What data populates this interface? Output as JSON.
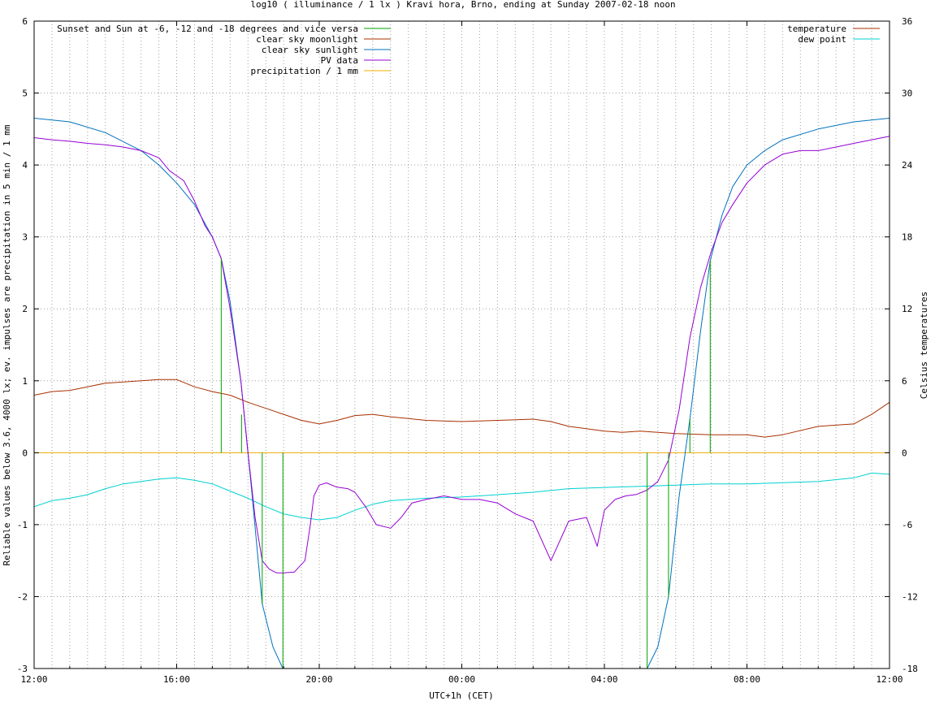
{
  "chart_data": {
    "type": "line",
    "title": "log10 ( illuminance / 1 lx ) Kravi hora, Brno, ending at Sunday 2007-02-18 noon",
    "xlabel": "UTC+1h (CET)",
    "ylabel": "Reliable values below 3.6, 4000 lx; ev. impulses are precipitation in 5 min / 1 mm",
    "y2label": "Celsius temperatures",
    "x_unit": "hours since 2007-02-17 12:00 CET",
    "xlim": [
      0,
      24
    ],
    "ylim": [
      -3,
      6
    ],
    "y2lim": [
      -18,
      36
    ],
    "x_ticks": [
      {
        "x": 0,
        "label": "12:00"
      },
      {
        "x": 4,
        "label": "16:00"
      },
      {
        "x": 8,
        "label": "20:00"
      },
      {
        "x": 12,
        "label": "00:00"
      },
      {
        "x": 16,
        "label": "04:00"
      },
      {
        "x": 20,
        "label": "08:00"
      },
      {
        "x": 24,
        "label": "12:00"
      }
    ],
    "y_ticks": [
      {
        "v": -3,
        "label": "-3"
      },
      {
        "v": -2,
        "label": "-2"
      },
      {
        "v": -1,
        "label": "-1"
      },
      {
        "v": 0,
        "label": "0"
      },
      {
        "v": 1,
        "label": "1"
      },
      {
        "v": 2,
        "label": "2"
      },
      {
        "v": 3,
        "label": "3"
      },
      {
        "v": 4,
        "label": "4"
      },
      {
        "v": 5,
        "label": "5"
      },
      {
        "v": 6,
        "label": "6"
      }
    ],
    "y2_ticks": [
      {
        "v": -18,
        "label": "-18"
      },
      {
        "v": -12,
        "label": "-12"
      },
      {
        "v": -6,
        "label": "-6"
      },
      {
        "v": 0,
        "label": "0"
      },
      {
        "v": 6,
        "label": "6"
      },
      {
        "v": 12,
        "label": "12"
      },
      {
        "v": 18,
        "label": "18"
      },
      {
        "v": 24,
        "label": "24"
      },
      {
        "v": 30,
        "label": "30"
      },
      {
        "v": 36,
        "label": "36"
      }
    ],
    "grid": true,
    "legend_left": [
      {
        "name": "Sunset and Sun at -6, -12 and -18 degrees and vice versa",
        "color": "#00a000"
      },
      {
        "name": "clear sky moonlight",
        "color": "#a83000"
      },
      {
        "name": "clear sky sunlight",
        "color": "#0072bd"
      },
      {
        "name": "PV data",
        "color": "#9400d3"
      },
      {
        "name": "precipitation / 1 mm",
        "color": "#f0b000"
      }
    ],
    "legend_right": [
      {
        "name": "temperature",
        "color": "#a83000"
      },
      {
        "name": "dew point",
        "color": "#00d0d0"
      }
    ],
    "sun_markers": [
      {
        "x": 5.25,
        "y": 2.7
      },
      {
        "x": 5.82,
        "y": 0.53
      },
      {
        "x": 6.4,
        "y": -2.1
      },
      {
        "x": 6.98,
        "y": -3.0
      },
      {
        "x": 17.2,
        "y": -3.0
      },
      {
        "x": 17.8,
        "y": -2.0
      },
      {
        "x": 18.4,
        "y": 0.47
      },
      {
        "x": 18.97,
        "y": 2.67
      }
    ],
    "precipitation": [
      0,
      0
    ],
    "series": [
      {
        "name": "clear sky sunlight",
        "axis": "y",
        "color": "#0072bd",
        "x": [
          0,
          1,
          2,
          3,
          3.5,
          4,
          4.5,
          5,
          5.25,
          5.5,
          5.8,
          6.1,
          6.4,
          6.7,
          6.98,
          17.2,
          17.5,
          17.8,
          18.1,
          18.4,
          18.7,
          18.97,
          19.3,
          19.6,
          20,
          20.5,
          21,
          22,
          23,
          24
        ],
        "y": [
          4.65,
          4.6,
          4.45,
          4.2,
          4.0,
          3.75,
          3.45,
          3.0,
          2.7,
          2.1,
          1.0,
          -0.5,
          -2.1,
          -2.7,
          -3.0,
          -3.0,
          -2.7,
          -2.0,
          -0.6,
          0.47,
          1.7,
          2.67,
          3.3,
          3.7,
          4.0,
          4.2,
          4.35,
          4.5,
          4.6,
          4.65
        ]
      },
      {
        "name": "PV data",
        "axis": "y",
        "color": "#9400d3",
        "x": [
          0,
          0.5,
          1,
          1.5,
          2,
          2.5,
          3,
          3.5,
          3.8,
          4.0,
          4.2,
          4.5,
          4.8,
          5.0,
          5.25,
          5.5,
          5.8,
          6.0,
          6.2,
          6.4,
          6.6,
          6.8,
          7.0,
          7.3,
          7.6,
          7.75,
          7.85,
          8.0,
          8.2,
          8.5,
          8.8,
          9.0,
          9.3,
          9.6,
          10.0,
          10.3,
          10.6,
          11.0,
          11.5,
          12.0,
          12.5,
          13.0,
          13.5,
          14.0,
          14.5,
          15.0,
          15.5,
          15.8,
          16.0,
          16.3,
          16.6,
          16.9,
          17.2,
          17.5,
          17.8,
          18.1,
          18.4,
          18.7,
          19.0,
          19.3,
          19.6,
          20.0,
          20.5,
          21.0,
          21.5,
          22.0,
          22.5,
          23.0,
          23.5,
          24.0
        ],
        "y": [
          4.38,
          4.35,
          4.33,
          4.3,
          4.28,
          4.25,
          4.2,
          4.1,
          3.92,
          3.85,
          3.78,
          3.5,
          3.15,
          3.0,
          2.7,
          2.0,
          1.0,
          0.0,
          -0.9,
          -1.5,
          -1.62,
          -1.67,
          -1.67,
          -1.66,
          -1.5,
          -1.0,
          -0.6,
          -0.45,
          -0.42,
          -0.48,
          -0.5,
          -0.55,
          -0.75,
          -1.0,
          -1.05,
          -0.9,
          -0.7,
          -0.65,
          -0.6,
          -0.65,
          -0.65,
          -0.7,
          -0.85,
          -0.95,
          -1.5,
          -0.95,
          -0.9,
          -1.3,
          -0.8,
          -0.65,
          -0.6,
          -0.58,
          -0.52,
          -0.4,
          -0.1,
          0.6,
          1.6,
          2.3,
          2.8,
          3.2,
          3.45,
          3.75,
          4.0,
          4.15,
          4.2,
          4.2,
          4.25,
          4.3,
          4.35,
          4.4
        ]
      },
      {
        "name": "temperature",
        "axis": "y2",
        "color": "#a83000",
        "x": [
          0,
          0.5,
          1,
          1.5,
          2,
          2.5,
          3,
          3.5,
          4,
          4.5,
          5,
          5.5,
          6,
          6.5,
          7,
          7.5,
          8,
          8.5,
          9,
          9.5,
          10,
          11,
          12,
          13,
          14,
          14.5,
          15,
          16,
          16.5,
          17,
          18,
          19,
          20,
          20.5,
          21,
          22,
          23,
          23.5,
          24
        ],
        "y": [
          4.8,
          5.1,
          5.2,
          5.5,
          5.8,
          5.9,
          6.0,
          6.1,
          6.1,
          5.5,
          5.1,
          4.8,
          4.2,
          3.7,
          3.2,
          2.7,
          2.4,
          2.7,
          3.1,
          3.2,
          3.0,
          2.7,
          2.6,
          2.7,
          2.8,
          2.6,
          2.2,
          1.8,
          1.7,
          1.8,
          1.6,
          1.5,
          1.5,
          1.3,
          1.5,
          2.2,
          2.4,
          3.2,
          4.2
        ]
      },
      {
        "name": "dew point",
        "axis": "y2",
        "color": "#00d0d0",
        "x": [
          0,
          0.5,
          1,
          1.5,
          2,
          2.5,
          3,
          3.5,
          4,
          4.5,
          5,
          5.5,
          6,
          6.5,
          7,
          7.5,
          8,
          8.5,
          9,
          9.5,
          10,
          11,
          12,
          13,
          14,
          15,
          16,
          17,
          18,
          19,
          20,
          21,
          22,
          23,
          23.5,
          24
        ],
        "y": [
          -4.5,
          -4.0,
          -3.8,
          -3.5,
          -3.0,
          -2.6,
          -2.4,
          -2.2,
          -2.1,
          -2.3,
          -2.6,
          -3.2,
          -3.8,
          -4.5,
          -5.1,
          -5.4,
          -5.6,
          -5.4,
          -4.8,
          -4.3,
          -4.0,
          -3.8,
          -3.7,
          -3.5,
          -3.3,
          -3.0,
          -2.9,
          -2.8,
          -2.7,
          -2.6,
          -2.6,
          -2.5,
          -2.4,
          -2.1,
          -1.7,
          -1.8
        ]
      }
    ]
  }
}
